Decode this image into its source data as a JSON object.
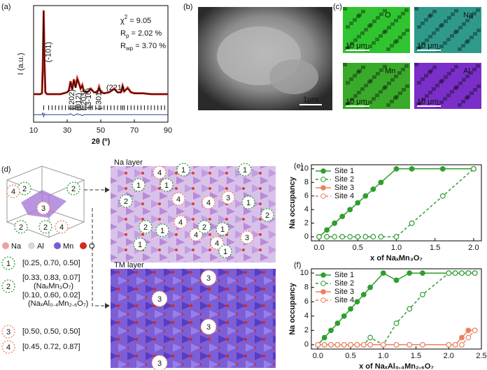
{
  "panels": {
    "a": "(a)",
    "b": "(b)",
    "c": "(c)",
    "d": "(d)",
    "e": "(e)",
    "f": "(f)"
  },
  "chart_data": [
    {
      "type": "xrd",
      "x_label": "2θ (º)",
      "y_label": "I (a.u.)",
      "xlim": [
        10,
        90
      ],
      "xticks": [
        10,
        30,
        50,
        70,
        90
      ],
      "ylim": [
        -20,
        105
      ],
      "x": [
        10,
        12,
        14,
        15,
        15.5,
        16,
        16.5,
        17,
        18,
        20,
        22,
        24,
        26,
        28,
        30,
        31,
        32,
        33,
        34,
        35,
        36,
        37,
        38,
        39,
        40,
        42,
        44,
        46,
        48,
        49,
        50,
        52,
        55,
        58,
        60,
        62,
        63,
        64,
        66,
        68,
        70,
        75,
        80,
        85,
        90
      ],
      "series": [
        {
          "color": "#d62a1e",
          "values": [
            10,
            10,
            10,
            11,
            40,
            100,
            45,
            12,
            10,
            10,
            10,
            10,
            10,
            11,
            12,
            14,
            24,
            15,
            26,
            17,
            27,
            22,
            16,
            20,
            13,
            12,
            16,
            12,
            12,
            18,
            12,
            11,
            12,
            16,
            12,
            12,
            19,
            13,
            17,
            12,
            11,
            11,
            10,
            10,
            10
          ]
        },
        {
          "color": "#000000",
          "values": [
            10,
            10,
            10,
            11,
            39,
            99,
            44,
            12,
            10,
            10,
            10,
            10,
            10,
            11,
            12,
            14,
            23,
            15,
            25,
            17,
            26,
            21,
            16,
            19,
            13,
            12,
            15,
            12,
            12,
            17,
            12,
            11,
            12,
            15,
            12,
            12,
            18,
            13,
            16,
            12,
            11,
            11,
            10,
            10,
            10
          ]
        },
        {
          "color": "#2f3d99",
          "values": [
            -12,
            -12,
            -12,
            -12,
            -10,
            -14,
            -11,
            -12,
            -12,
            -12,
            -12,
            -12,
            -12,
            -12,
            -12,
            -12,
            -11,
            -12,
            -13,
            -12,
            -11,
            -12,
            -12,
            -13,
            -12,
            -12,
            -12,
            -12,
            -12,
            -12,
            -12,
            -12,
            -12,
            -12,
            -12,
            -12,
            -12,
            -12,
            -12,
            -12,
            -12,
            -12,
            -12,
            -12,
            -12
          ]
        }
      ],
      "bragg_positions": [
        16,
        19,
        21,
        23,
        25,
        27,
        29,
        31,
        32,
        33,
        34,
        35,
        36,
        37,
        38,
        39,
        40,
        41,
        43,
        44,
        45,
        47,
        49,
        50,
        52,
        54,
        56,
        58,
        60,
        62,
        63,
        64,
        66,
        68,
        70,
        72,
        74,
        76,
        78,
        80,
        82,
        84,
        86,
        88
      ],
      "annotations": [
        "(-101)",
        "(-202)",
        "(012)",
        "(-203)",
        "(3-10)",
        "(-301)",
        "(221)"
      ],
      "fit_stats": [
        {
          "symbol": "χ",
          "sup": "2",
          "text": " = 9.05"
        },
        {
          "symbol": "R",
          "sub": "p",
          "text": " = 2.02 %"
        },
        {
          "symbol": "R",
          "sub": "wp",
          "text": " = 3.70 %"
        }
      ]
    },
    {
      "type": "line",
      "x_label": "x of NaₓMn₃O₇",
      "y_label": "Na occupancy",
      "legend": "upper left",
      "xlim": [
        -0.1,
        2.1
      ],
      "ylim": [
        -0.6,
        10.6
      ],
      "xticks": [
        {
          "value": 0,
          "label": "0.0"
        },
        {
          "value": 0.5,
          "label": "0.5"
        },
        {
          "value": 1,
          "label": "1.0"
        },
        {
          "value": 1.5,
          "label": "1.5"
        },
        {
          "value": 2,
          "label": "2.0"
        }
      ],
      "yticks": [
        0,
        2,
        4,
        6,
        8,
        10
      ],
      "x": [
        0,
        0.1,
        0.2,
        0.3,
        0.4,
        0.5,
        0.6,
        0.7,
        0.8,
        1.0,
        1.2,
        1.6,
        2.0
      ],
      "series": [
        {
          "name": "Site 1",
          "color": "#2e9e2e",
          "marker": "filled",
          "dashed": false,
          "values": [
            0,
            1,
            2,
            3,
            4,
            5,
            6,
            7,
            8,
            10,
            10,
            10,
            10
          ]
        },
        {
          "name": "Site 2",
          "color": "#2e9e2e",
          "marker": "open",
          "dashed": true,
          "values": [
            0,
            0,
            0,
            0,
            0,
            0,
            0,
            0,
            0,
            0,
            2,
            6,
            10
          ]
        },
        {
          "name": "Site 3",
          "color": "#ee7f5f",
          "marker": "filled",
          "dashed": false,
          "values": [
            null,
            null,
            null,
            null,
            null,
            null,
            null,
            null,
            null,
            null,
            null,
            null,
            null
          ]
        },
        {
          "name": "Site 4",
          "color": "#ee7f5f",
          "marker": "open",
          "dashed": true,
          "values": [
            null,
            null,
            null,
            null,
            null,
            null,
            null,
            null,
            null,
            null,
            null,
            null,
            null
          ]
        }
      ]
    },
    {
      "type": "line",
      "x_label": "x of NaₓAl₀.₄Mn₂.₆O₇",
      "y_label": "Na occupancy",
      "legend": "upper left",
      "xlim": [
        -0.1,
        2.5
      ],
      "ylim": [
        -0.6,
        10.6
      ],
      "xticks": [
        {
          "value": 0,
          "label": "0.0"
        },
        {
          "value": 0.5,
          "label": "0.5"
        },
        {
          "value": 1,
          "label": "1.0"
        },
        {
          "value": 1.5,
          "label": "1.5"
        },
        {
          "value": 2,
          "label": "2.0"
        },
        {
          "value": 2.5,
          "label": "2.5"
        }
      ],
      "yticks": [
        0,
        2,
        4,
        6,
        8,
        10
      ],
      "x": [
        0,
        0.1,
        0.2,
        0.3,
        0.4,
        0.5,
        0.6,
        0.7,
        0.8,
        1.0,
        1.2,
        1.4,
        1.6,
        2.0,
        2.1,
        2.2,
        2.3,
        2.4
      ],
      "series": [
        {
          "name": "Site 1",
          "color": "#2e9e2e",
          "marker": "filled",
          "dashed": false,
          "values": [
            0,
            1,
            2,
            3,
            4,
            5,
            6,
            7,
            8,
            10,
            9,
            10,
            10,
            10,
            10,
            10,
            10,
            10
          ]
        },
        {
          "name": "Site 2",
          "color": "#2e9e2e",
          "marker": "open",
          "dashed": true,
          "values": [
            0,
            0,
            0,
            0,
            0,
            0,
            0,
            0,
            1,
            0,
            3,
            5,
            7,
            10,
            10,
            10,
            10,
            10
          ]
        },
        {
          "name": "Site 3",
          "color": "#ee7f5f",
          "marker": "filled",
          "dashed": false,
          "values": [
            0,
            0,
            0,
            0,
            0,
            0,
            0,
            0,
            0,
            0,
            0,
            0,
            0,
            0,
            0,
            1,
            2,
            2
          ]
        },
        {
          "name": "Site 4",
          "color": "#ee7f5f",
          "marker": "open",
          "dashed": true,
          "values": [
            0,
            0,
            0,
            0,
            0,
            0,
            0,
            0,
            0,
            0,
            0,
            0,
            0,
            0,
            0,
            0,
            1,
            2
          ]
        }
      ]
    }
  ],
  "sem": {
    "scale_bar": "1μm"
  },
  "eds": {
    "maps": [
      {
        "element": "O",
        "scale_bar": "10 μm"
      },
      {
        "element": "Na",
        "scale_bar": "10 μm"
      },
      {
        "element": "Mn",
        "scale_bar": "10 μm"
      },
      {
        "element": "Al",
        "scale_bar": "10 μm"
      }
    ]
  },
  "structure": {
    "na_layer": "Na layer",
    "tm_layer": "TM layer",
    "atoms": [
      "Na",
      "Al",
      "Mn",
      "O"
    ],
    "sites": [
      {
        "number": "1",
        "coords": "[0.25, 0.70, 0.50]"
      },
      {
        "number": "2",
        "coords": "[0.33, 0.83, 0.07]",
        "note": "(NaₓMn₃O₇)",
        "coords2": "[0.10, 0.60, 0.02]",
        "note2": "(NaₓAl₀.₄Mn₂.₆O₇)"
      },
      {
        "number": "3",
        "coords": "[0.50, 0.50, 0.50]"
      },
      {
        "number": "4",
        "coords": "[0.45, 0.72, 0.87]"
      }
    ]
  }
}
